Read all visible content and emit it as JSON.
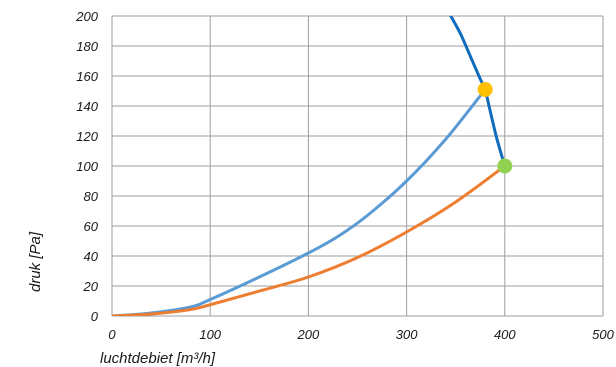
{
  "chart_data": {
    "type": "line",
    "xlabel": "luchtdebiet [m³/h]",
    "ylabel": "druk [Pa]",
    "xlim": [
      0,
      500
    ],
    "ylim": [
      0,
      200
    ],
    "xticks": [
      0,
      100,
      200,
      300,
      400,
      500
    ],
    "yticks": [
      0,
      20,
      40,
      60,
      80,
      100,
      120,
      140,
      160,
      180,
      200
    ],
    "grid": true,
    "series": [
      {
        "color": "#5b9bd5",
        "x": [
          0,
          40,
          80,
          100,
          150,
          200,
          230,
          260,
          300,
          340,
          380
        ],
        "y": [
          0,
          2,
          6,
          11,
          26,
          42,
          53,
          67,
          90,
          118,
          151
        ]
      },
      {
        "color": "#ed7d31",
        "x": [
          0,
          40,
          80,
          100,
          150,
          200,
          250,
          300,
          350,
          400
        ],
        "y": [
          0,
          1.3,
          4.3,
          7.5,
          16.6,
          26,
          39,
          56,
          76,
          100
        ]
      },
      {
        "color": "#0f6cbd",
        "x": [
          345,
          355,
          365,
          375,
          380,
          385,
          392,
          400
        ],
        "y": [
          200,
          188,
          173,
          158,
          151,
          137,
          118,
          100
        ]
      }
    ],
    "points": [
      {
        "x": 380,
        "y": 151,
        "color": "#ffc000"
      },
      {
        "x": 400,
        "y": 100,
        "color": "#92d050"
      }
    ]
  }
}
